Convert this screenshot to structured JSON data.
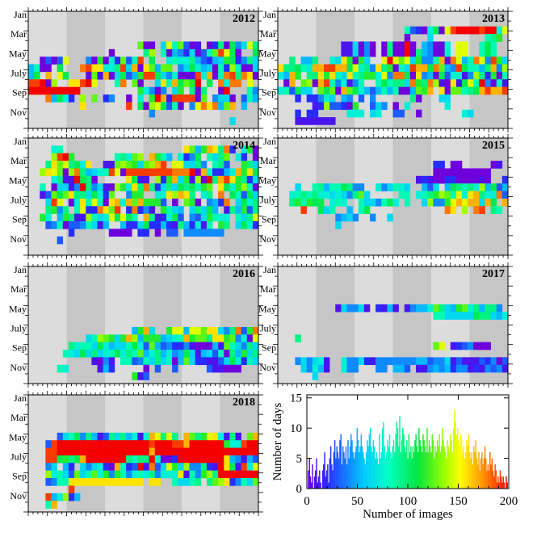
{
  "chart_data": [
    {
      "type": "heatmap",
      "year": "2012",
      "title": "2012",
      "row_labels": [
        "Jan",
        "Mar",
        "May",
        "July",
        "Sep",
        "Nov"
      ],
      "rows": [
        "..............................................................",
        "..............................................................",
        "..............................................................",
        "..............................................................",
        "...................mAA.GOIMDAB.ACjAkEGOJHpIIn.aCGB.aHHQIOHMX...",
        "..............A.....JN.IYFEcgVDIMSOKV..kGcKCFIEIVDZGEHXD....GG.",
        "..AdXdO...EALXHCMdIS.K..hiHHJFDCFGLKCEJGKGIGAGAHJBbBPFAm..fCK.S",
        "FIZX.k...RSPPHHJSGQUPMFMM.EGKHfGAICnIZAGDaFQRHdHADHAEFI.LSQEAUM",
        "FK.Q.Ok...VMBQXGKdFLSSKGEHVVbSHQAIRSJRpAAWSX.RfKU.SlLBQGdPHFN..",
        "SSTUN..PPSTO...IR.MX..GPIQkMLT.K.RHRR.O.M.QMcZ.fQ.GYRGJcLCYLKdU",
        "TTTTTTTTT..........lHEAE.GL.JUJ..AT...IEn.QBRL.k..X....m.......",
        "...RFkHc.N.M.cE..Y.H.LTqbSSSSaM.EGGV.DIF..BRIZOGRX.J..C.VJK..HG",
        ".........P.......S.kYnoKdIA.EORPRFMQ.F..a.Q..LNJJ.BcPTRNAlJGKB.",
        ".....................E.................................P......",
        "...................................G.........................."
      ]
    },
    {
      "type": "heatmap",
      "year": "2013",
      "title": "2013",
      "row_labels": [
        "Jan",
        "Mar",
        "May",
        "July",
        "Sep",
        "Nov"
      ],
      "rows": [
        "..................................................GJF..SH.N....",
        ".........................................................Gk..",
        "......................IDCaHkZOSTTTTSTTHOUAIJD..FHDEAQH..........",
        "......................X...G.........IJL.hBCI.....FGOEKF.....NQNRQU",
        "...........bbGUEU.AJUUTW.FEAAH.OO..iKI..JGEIEYIKOVFc.FJZYXYEJnE",
        "...........bbGUEU.AJUUTWJFEAAH.OO..iKI..JGEIEYIKOVFc.FJZYXYEJnE",
        "..J.FFJ..HGPLaLG..OTOMOGLEEIQVROFIROESLGJLHD.DFFGUSGMHE..EUHIM",
        "PJJKIHQQSSQQKOHJEPJLUIGSQQKRMFESKIIFJQENFICSXEGJBKNDQEJEBODFOJP",
        "HFQL.JJPLPIGPIJLLHOERRKXPEFXKdhHBENjCLUIRGQHNCHQGDJXFGSJGLNSLLQH",
        ".Uq.MnaqSIEHBEI..IkIJJGRLJRnBVPbKOITEUIBIAdSLTQSlTcKJaLJJUHRIDVM",
        "HIDKGG.mKmXQMKhFdFIFIUaFmlQ.PUMMIJKQSQQSSSSSRRRRSRRSPRDQLS.XKPJR",
        "...C.CCEHG.FE.D.E......JA...GG..........D.....GH.......FI....",
        "......bCnDDCaL..DGE.A.h......H..........J........I.........",
        "...C.CC.....HHH.GH..DD..A.......HG.......C......GH........",
        "...BBBBBBB........................................"
      ]
    },
    {
      "type": "heatmap",
      "year": "2014",
      "title": "2014",
      "row_labels": [
        "Jan",
        "Mar",
        "May",
        "July",
        "Sep",
        "Nov"
      ],
      "rows": [
        "..............................................................",
        "....HI.....................PMFLQPJRc.HLUGH..............I.DD....",
        "....NSTL.......IJHMN.QLIF.HCEK.IGJM.HC.AUcn.aLH.Jn.IIBIJAGJFCJEB",
        "...JPMOJKHP..BBMNMLGMNQS.OOGGJE.Ijd..LJGCQLCJKaSGPlXJCJGIGEeHGH",
        "..NPOMUNRJFGHISOUSSSSSSSSRRRTAQHcCFHQlpKULFLBKlnnILGDKaBBOFGMHB",
        "....HjBBTKJA.....PKBB.NCLQGLbnUTJQSPLJcGENLKIMIOJKBDCMMKIQaCLIG",
        "..I.AGGBeTJEGBUNLHPJRJCGJGkjKILM.PKHLNIaEGIAMNHBMGFJG.IVCMHKNBOT",
        "..BDMKMPJJGKHCM..ELL..HHPNQPJ.HJ.R.KIDKGKEQHbIIRaDPdJGBMCDJ...",
        "...GSO.AHPIOIUPQHQMQLLLD.A.MLU.EFCR.GKHJQjGCGPeHdLDSFKJGJGOCEUB",
        "...JLEJ.IOCCRPMS.cRCEB.LIGF.GJGKF.bjfLDJGDCHQHDBRBHDKJC..GIRLIB",
        "..LH.FLJBBNIGHOKOKI.QJBCHKD.EDGLIHH.IGJOMJERIUEHSNNEGKIKKCJKI..",
        "...DEIADDEIGBF..FCCGKCCFCbJFCHBI.LJ.GKHCDEGDBJEEGKG.GJDB.LKJDD",
        ".......C......AAAA.CC.A.DD.EEEEEEE.........C...B..........B...",
        ".....D....................................................."
      ]
    },
    {
      "type": "heatmap",
      "year": "2015",
      "title": "2015",
      "row_labels": [
        "Jan",
        "Mar",
        "May",
        "July",
        "Sep",
        "Nov"
      ],
      "rows": [
        "..............................................................",
        "..............................................................",
        "..............................................................",
        "...........................cc.AA.....AB.....A.................",
        "...........................AAAAAAAAAA...A....BA...............",
        "........................BCBAACCAAAABA..CAC..AAB..B..A.......DE",
        "...G..IJFIIKJEE..HEGIHG..FDG.FKJIJHNFKDFBFHIHGEGNGMLMJFSSSJIHJ",
        "..HIJIJHHGHGEJMG.....II.HIJLNMIOHPQJHHRDQEKNRSTKLQRSRJQMKHOGHKPP",
        "..JLILKK.HIH..IGGEIKH.I..GNEELOQOQQGQK.QJMHNIPMNL.RSTSRSQSQOQR",
        "....S..KGI..F.IK.............RP.N.RS.JI.M...M.RHO.QRIK.NQIF..",
        "..........EFGE..E..G.......................H.......J.....",
        "..........G....................................J.........",
        "..............................................................",
        ".............................................................."
      ]
    },
    {
      "type": "heatmap",
      "year": "2016",
      "title": "2016",
      "row_labels": [
        "Jan",
        "Mar",
        "May",
        "July",
        "Sep",
        "Nov"
      ],
      "rows": [
        "..............................................................",
        "..............................................................",
        "..............................................................",
        "..............................................................",
        "..............................................................",
        "..............................................................",
        "..............................................................",
        "..............................................................",
        "..................FLQG..LOOFOOMPPGEJRDLRDKCQNHGILEJJMKHAMGJGFC",
        "..........GINMLGLQNFLLLFGHIQLMMJPPLMEHAONLMIQEMKNLPPONFLHENJLOR",
        ".......JHIIGKHFGGIKHDMFDECCEBAAAFBMIGEJGGHCFHLGNKJAAAAGLKKOMK",
        "......IHGKGJGHIKHJIMFHJFHEFKGBFGDIAJFLGJEHGGGKGDIIKHHGGFHBGEGFM",
        "...........BAEB.IIDEIGJGIAFMGCCBBDGKHCIGJIFGFIEJHGHGHFDGIFNHBD",
        ".....IH.....BFC.....A.D..D.....DBBAAA......D......B...D....",
        "..................LBD.............................................",
        "..............................................................."
      ]
    },
    {
      "type": "heatmap",
      "year": "2017",
      "title": "2017",
      "row_labels": [
        "Jan",
        "Mar",
        "May",
        "July",
        "Sep",
        "Nov"
      ],
      "rows": [
        "..............................................................",
        "..............................................................",
        "..................................................B...........",
        "..............................................................",
        "..............................................................",
        "..........BGEEGB.CBFB.BEFFHMJGFLMHJFJJE....JGFHHJNOLLMOLKQLPMM",
        "...........................IIGGGGGKJJGFHMHIKIIKHHOMKKNQGIHJOQN",
        "...............................................................",
        "......................................................................",
        "...J..................................................",
        "...........................MO.BCDEAAA......................NE",
        "...................................................NPINQNL.LJN",
        "...EGEGHB..HEEGCBEEEEEEEFFDEEGBDBBBDCEADBDFFDCBFAAAFEEFGDEFGH",
        "....GEHFB..HEE...EE.FFD.BBEFEFCEEBCBEDEB.CAECBEBEEFEFFHF.FFG",
        "......G................................................"
      ]
    },
    {
      "type": "heatmap",
      "year": "2018",
      "title": "2018",
      "row_labels": [
        "Jan",
        "Mar",
        "May",
        "July",
        "Sep",
        "Nov"
      ],
      "rows": [
        "..............................................................",
        "...........................................................",
        "..........................................LHJ...........",
        "..........................................MLN.MH...............",
        "..............................................................",
        ".....DGIKEJFBDJGJFHBHQOJOJ.QMJLOPHBJB.MQNPMHSSSFHMLQIPIGKMSHT",
        "...DSTTTTTTTTTTTTTTTTSTTTSSQTTTTTTLHHSTTHTTTTTTTTTTTTTTTTTTTTTT",
        "...SSTTTTTTTTTTTTTTTTQTTTTTTTTTTTTTTTTTTTTTTTTTTTTTTTTTTTTTTTTT",
        "...SSKLJKQTTTTTTTJIJJTHAACTTTTTTTTPFEBFDHAAFGHQPTTTTTTTTTTSQ..",
        "...EG.FC.GEGHCAQICDTBRDGOLGNEEJCBTPKBSHOGLMOECEFJMJFOKAJKLJM",
        "...NHIGDMGIMHLELIEHIHJEHHHPBIELNJTTTTTTTTTTTTTTTTTTTTTTFGEL.",
        "...DEIIPPPPPPPPPPPPP.PP..IGGIJ.JMNPCEIGMEFEKHDEHFFDFEGGJMIEB",
        ".......S............................................B.",
        "...SFHNCF.................................................",
        "...IQ............................................................."
      ]
    },
    {
      "type": "bar",
      "title": "",
      "xlabel": "Number of images",
      "ylabel": "Number of days",
      "xlim": [
        0,
        200
      ],
      "ylim": [
        0,
        15.5
      ],
      "x_ticks": [
        "0",
        "50",
        "100",
        "150",
        "200"
      ],
      "y_ticks": [
        "0",
        "5",
        "10",
        "15"
      ],
      "values": [
        0,
        3,
        5,
        2,
        1,
        4,
        0,
        2,
        3,
        5,
        1,
        2,
        3,
        1,
        0,
        3,
        4,
        6,
        2,
        3,
        4,
        1,
        5,
        7,
        4,
        3,
        6,
        8,
        5,
        7,
        6,
        5,
        8,
        9,
        4,
        7,
        6,
        5,
        7,
        4,
        8,
        5,
        7,
        9,
        8,
        6,
        5,
        6,
        7,
        10,
        8,
        6,
        7,
        9,
        7,
        6,
        5,
        4,
        6,
        8,
        7,
        9,
        10,
        7,
        6,
        8,
        7,
        5,
        6,
        5,
        4,
        9,
        5,
        6,
        10,
        11,
        7,
        5,
        6,
        8,
        7,
        9,
        6,
        5,
        7,
        8,
        6,
        9,
        11,
        10,
        7,
        12,
        6,
        8,
        10,
        9,
        7,
        6,
        8,
        5,
        9,
        6,
        7,
        5,
        7,
        6,
        8,
        9,
        7,
        6,
        10,
        8,
        7,
        6,
        9,
        8,
        7,
        6,
        10,
        6,
        8,
        7,
        6,
        9,
        8,
        5,
        7,
        6,
        8,
        7,
        9,
        6,
        7,
        10,
        8,
        7,
        6,
        5,
        8,
        7,
        6,
        9,
        8,
        6,
        10,
        13,
        11,
        9,
        10,
        8,
        7,
        9,
        8,
        6,
        7,
        5,
        6,
        8,
        7,
        9,
        6,
        5,
        6,
        4,
        7,
        6,
        8,
        5,
        4,
        6,
        3,
        5,
        6,
        4,
        5,
        7,
        5,
        3,
        4,
        3,
        6,
        4,
        5,
        3,
        2,
        4,
        3,
        1,
        2,
        1,
        3,
        2,
        1,
        2,
        1,
        0,
        2,
        1,
        0
      ]
    }
  ]
}
